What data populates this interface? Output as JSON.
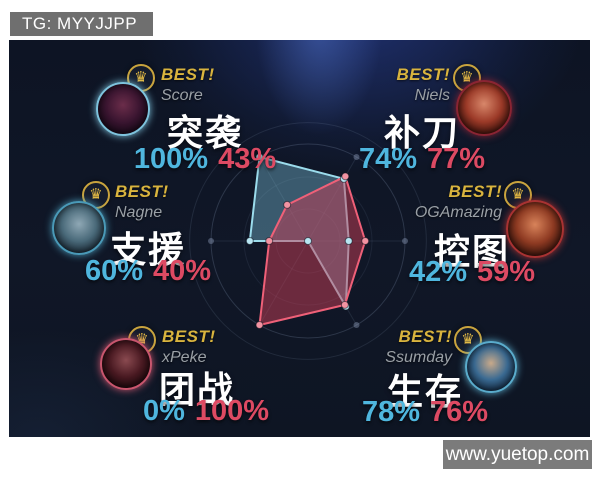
{
  "watermarks": {
    "top_left": "TG: MYYJJPP",
    "bottom_right": "www.yuetop.com"
  },
  "best_label": "BEST!",
  "crown_glyph": "♛",
  "colors": {
    "blue_value": "#4fb6de",
    "red_value": "#dd4a63",
    "gold": "#d9b43e",
    "player_name": "#9aa0a6",
    "panel_bg": "#0f1626"
  },
  "stats": [
    {
      "key": "raid",
      "label": "突袭",
      "player": "Score",
      "blue": "100%",
      "red": "43%",
      "avatar": {
        "ring": "#7ec3dd",
        "colors": [
          "#6b2d4a",
          "#3a1530",
          "#120714"
        ]
      }
    },
    {
      "key": "last-hit",
      "label": "补刀",
      "player": "Niels",
      "blue": "74%",
      "red": "77%",
      "avatar": {
        "ring": "#8a2433",
        "colors": [
          "#d8876a",
          "#9c3a28",
          "#320d08"
        ]
      }
    },
    {
      "key": "support",
      "label": "支援",
      "player": "Nagne",
      "blue": "60%",
      "red": "40%",
      "avatar": {
        "ring": "#4a9ab8",
        "colors": [
          "#8fa8b5",
          "#4a6a7a",
          "#15222e"
        ]
      }
    },
    {
      "key": "map-control",
      "label": "控图",
      "player": "OGAmazing",
      "blue": "42%",
      "red": "59%",
      "avatar": {
        "ring": "#a83232",
        "colors": [
          "#d8835a",
          "#8e3a22",
          "#2a0d08"
        ]
      }
    },
    {
      "key": "teamfight",
      "label": "团战",
      "player": "xPeke",
      "blue": "0%",
      "red": "100%",
      "avatar": {
        "ring": "#c9566e",
        "colors": [
          "#8a4a50",
          "#4a1a22",
          "#150508"
        ]
      }
    },
    {
      "key": "survival",
      "label": "生存",
      "player": "Ssumday",
      "blue": "78%",
      "red": "76%",
      "avatar": {
        "ring": "#5aaccc",
        "colors": [
          "#c8a98a",
          "#3a6a92",
          "#0f2238"
        ]
      }
    }
  ],
  "chart_data": {
    "type": "radar",
    "title": "",
    "categories": [
      "突袭",
      "补刀",
      "控图",
      "生存",
      "团战",
      "支援"
    ],
    "axis_angles_deg": [
      120,
      60,
      0,
      -60,
      -120,
      180
    ],
    "max": 100,
    "center": [
      308,
      241
    ],
    "radius": 97,
    "rings": [
      0.33,
      0.66,
      1.0
    ],
    "outer_ring": 1.22,
    "grid": true,
    "legend": false,
    "series": [
      {
        "name": "blue-team",
        "values": [
          100,
          74,
          42,
          78,
          0,
          60
        ],
        "stroke": "#9bdcec",
        "fill": "rgba(120,185,210,0.42)",
        "dot": "#b8e6f2"
      },
      {
        "name": "red-team",
        "values": [
          43,
          77,
          59,
          76,
          100,
          40
        ],
        "stroke": "#ef6078",
        "fill": "rgba(200,62,85,0.50)",
        "dot": "#f293a2"
      }
    ]
  }
}
